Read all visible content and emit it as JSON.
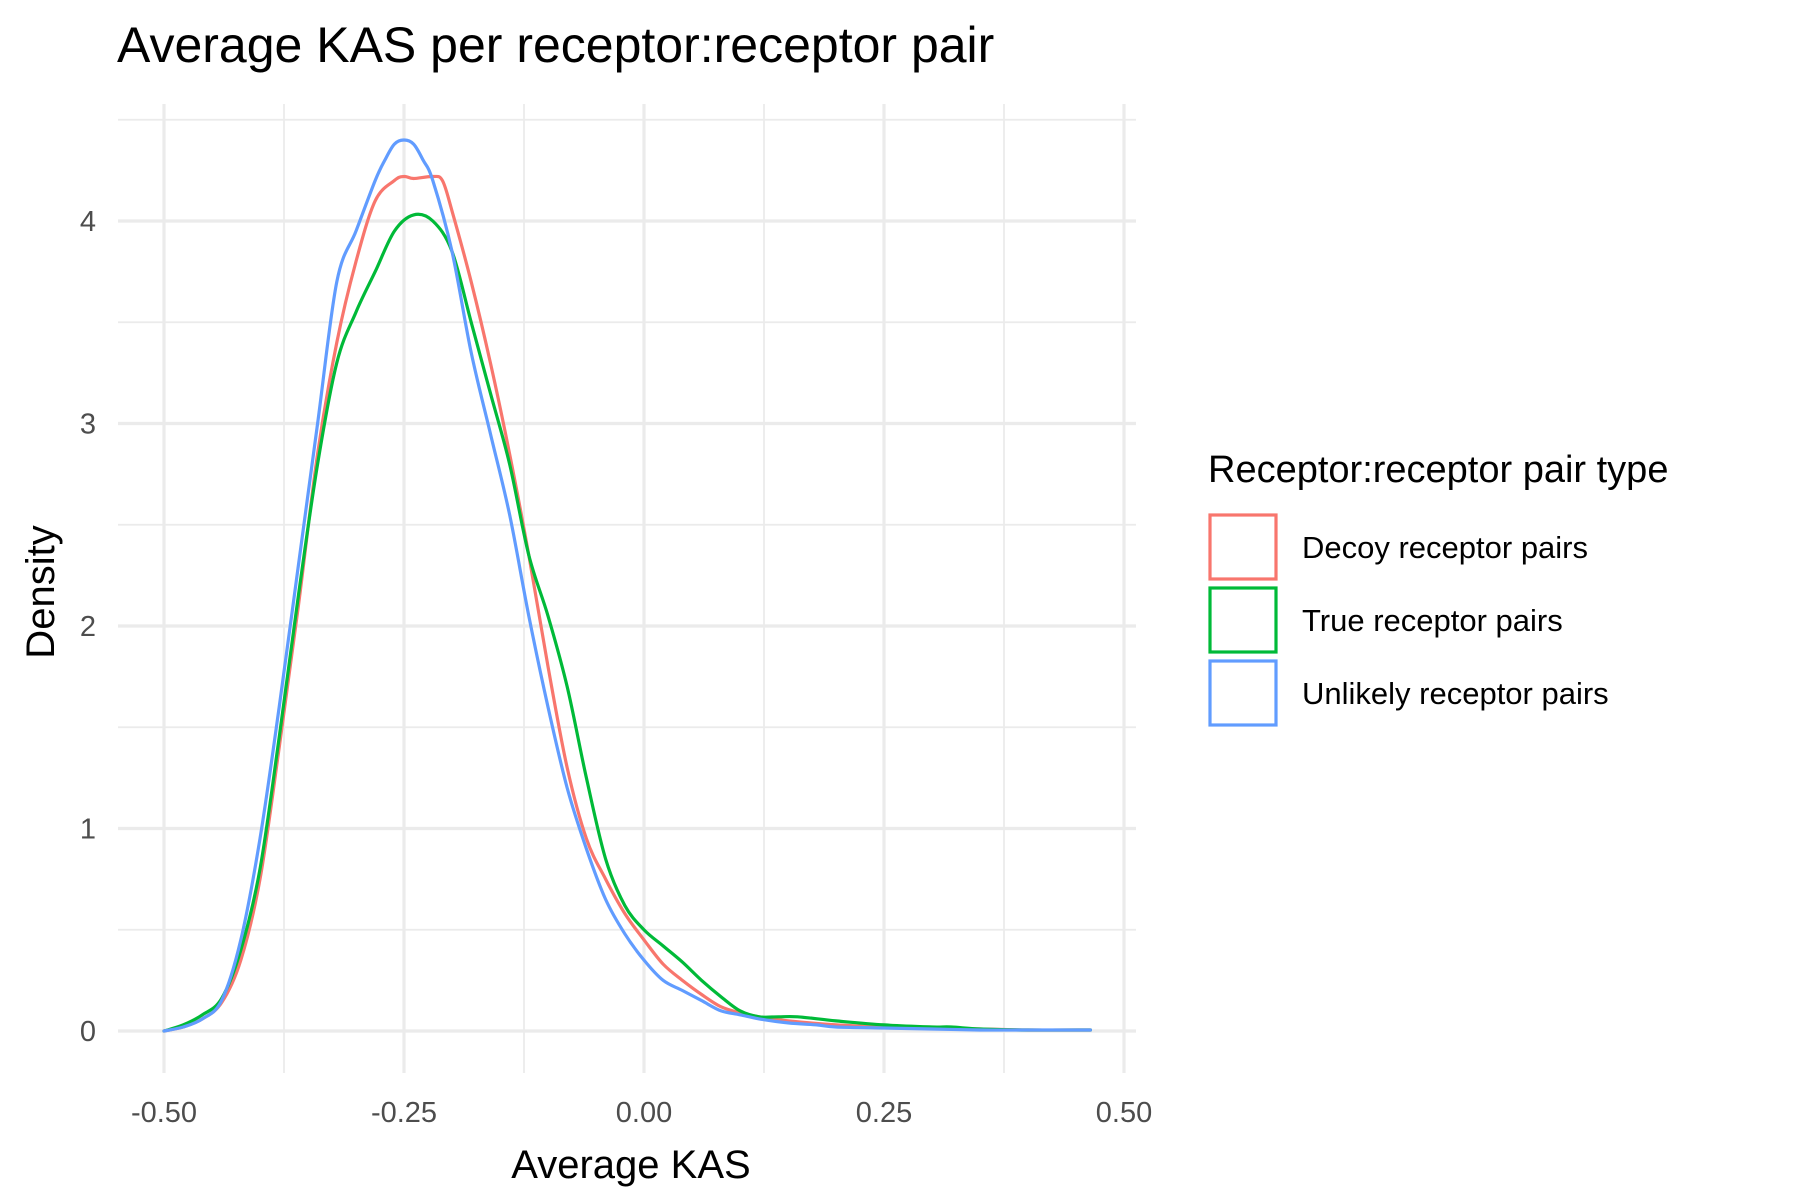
{
  "chart_data": {
    "type": "line",
    "title": "Average KAS per receptor:receptor pair",
    "xlabel": "Average KAS",
    "ylabel": "Density",
    "xlim": [
      -0.5,
      0.5
    ],
    "ylim": [
      0,
      4.4
    ],
    "x_ticks": [
      -0.5,
      -0.25,
      0.0,
      0.25,
      0.5
    ],
    "x_tick_labels": [
      "-0.50",
      "-0.25",
      "0.00",
      "0.25",
      "0.50"
    ],
    "y_ticks": [
      0,
      1,
      2,
      3,
      4
    ],
    "y_tick_labels": [
      "0",
      "1",
      "2",
      "3",
      "4"
    ],
    "grid": true,
    "legend": {
      "title": "Receptor:receptor pair type",
      "position": "right",
      "entries": [
        "Decoy receptor pairs",
        "True receptor pairs",
        "Unlikely receptor pairs"
      ]
    },
    "series": [
      {
        "name": "Decoy receptor pairs",
        "color": "#F8766D",
        "x": [
          -0.5,
          -0.48,
          -0.46,
          -0.44,
          -0.42,
          -0.4,
          -0.38,
          -0.36,
          -0.34,
          -0.32,
          -0.3,
          -0.28,
          -0.26,
          -0.25,
          -0.24,
          -0.22,
          -0.21,
          -0.2,
          -0.18,
          -0.16,
          -0.14,
          -0.12,
          -0.1,
          -0.08,
          -0.06,
          -0.04,
          -0.02,
          0.0,
          0.02,
          0.04,
          0.06,
          0.08,
          0.1,
          0.12,
          0.15,
          0.2,
          0.25,
          0.3,
          0.35,
          0.4,
          0.465
        ],
        "y": [
          0.0,
          0.02,
          0.06,
          0.14,
          0.35,
          0.75,
          1.4,
          2.1,
          2.85,
          3.4,
          3.8,
          4.1,
          4.2,
          4.22,
          4.21,
          4.22,
          4.2,
          4.05,
          3.7,
          3.3,
          2.85,
          2.35,
          1.8,
          1.3,
          0.95,
          0.75,
          0.58,
          0.45,
          0.33,
          0.25,
          0.18,
          0.12,
          0.09,
          0.07,
          0.05,
          0.03,
          0.02,
          0.015,
          0.01,
          0.005,
          0.005
        ]
      },
      {
        "name": "True receptor pairs",
        "color": "#00BA38",
        "x": [
          -0.5,
          -0.48,
          -0.46,
          -0.44,
          -0.42,
          -0.4,
          -0.38,
          -0.36,
          -0.34,
          -0.32,
          -0.3,
          -0.28,
          -0.26,
          -0.24,
          -0.22,
          -0.2,
          -0.18,
          -0.16,
          -0.14,
          -0.12,
          -0.1,
          -0.08,
          -0.06,
          -0.04,
          -0.02,
          0.0,
          0.02,
          0.04,
          0.06,
          0.08,
          0.1,
          0.12,
          0.14,
          0.16,
          0.2,
          0.25,
          0.3,
          0.32,
          0.35,
          0.4,
          0.465
        ],
        "y": [
          0.0,
          0.03,
          0.08,
          0.16,
          0.4,
          0.8,
          1.45,
          2.15,
          2.8,
          3.3,
          3.55,
          3.75,
          3.95,
          4.03,
          4.0,
          3.85,
          3.5,
          3.15,
          2.8,
          2.35,
          2.05,
          1.7,
          1.25,
          0.85,
          0.62,
          0.5,
          0.42,
          0.34,
          0.25,
          0.17,
          0.1,
          0.07,
          0.07,
          0.07,
          0.05,
          0.03,
          0.02,
          0.02,
          0.01,
          0.005,
          0.005
        ]
      },
      {
        "name": "Unlikely receptor pairs",
        "color": "#619CFF",
        "x": [
          -0.5,
          -0.48,
          -0.46,
          -0.44,
          -0.42,
          -0.4,
          -0.38,
          -0.36,
          -0.34,
          -0.32,
          -0.3,
          -0.28,
          -0.27,
          -0.26,
          -0.25,
          -0.24,
          -0.23,
          -0.22,
          -0.2,
          -0.18,
          -0.16,
          -0.14,
          -0.12,
          -0.1,
          -0.08,
          -0.06,
          -0.04,
          -0.02,
          0.0,
          0.02,
          0.04,
          0.06,
          0.08,
          0.1,
          0.12,
          0.15,
          0.18,
          0.2,
          0.25,
          0.3,
          0.35,
          0.4,
          0.465
        ],
        "y": [
          0.0,
          0.02,
          0.06,
          0.15,
          0.45,
          0.95,
          1.6,
          2.3,
          3.0,
          3.7,
          3.95,
          4.2,
          4.3,
          4.38,
          4.4,
          4.38,
          4.3,
          4.2,
          3.85,
          3.35,
          2.95,
          2.55,
          2.05,
          1.6,
          1.2,
          0.9,
          0.65,
          0.48,
          0.35,
          0.25,
          0.2,
          0.15,
          0.1,
          0.08,
          0.06,
          0.04,
          0.03,
          0.02,
          0.015,
          0.01,
          0.005,
          0.005,
          0.005
        ]
      }
    ]
  }
}
